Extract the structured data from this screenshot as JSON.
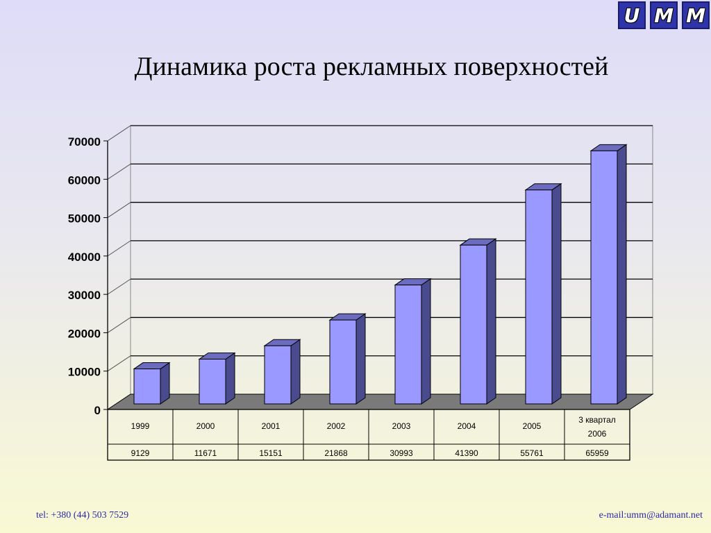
{
  "logo": {
    "letters": [
      "U",
      "M",
      "M"
    ]
  },
  "page": {
    "title": "Динамика роста рекламных поверхностей"
  },
  "footer": {
    "tel": "tel: +380 (44) 503 7529",
    "email": "e-mail:umm@adamant.net"
  },
  "colors": {
    "bar_front": "#9999ff",
    "bar_side": "#4a4a8e",
    "bar_top": "#6b6bc0",
    "floor": "#7a7a7a"
  },
  "chart_data": {
    "type": "bar",
    "categories": [
      "1999",
      "2000",
      "2001",
      "2002",
      "2003",
      "2004",
      "2005",
      "3 квартал 2006"
    ],
    "values": [
      9129,
      11671,
      15151,
      21868,
      30993,
      41390,
      55761,
      65959
    ],
    "value_labels": [
      "9129",
      "11671",
      "15151",
      "21868",
      "30993",
      "41390",
      "55761",
      "65959"
    ],
    "y_ticks": [
      "0",
      "10000",
      "20000",
      "30000",
      "40000",
      "50000",
      "60000",
      "70000"
    ],
    "ylim": [
      0,
      70000
    ],
    "grid": true,
    "legend": "none",
    "three_d": true
  }
}
